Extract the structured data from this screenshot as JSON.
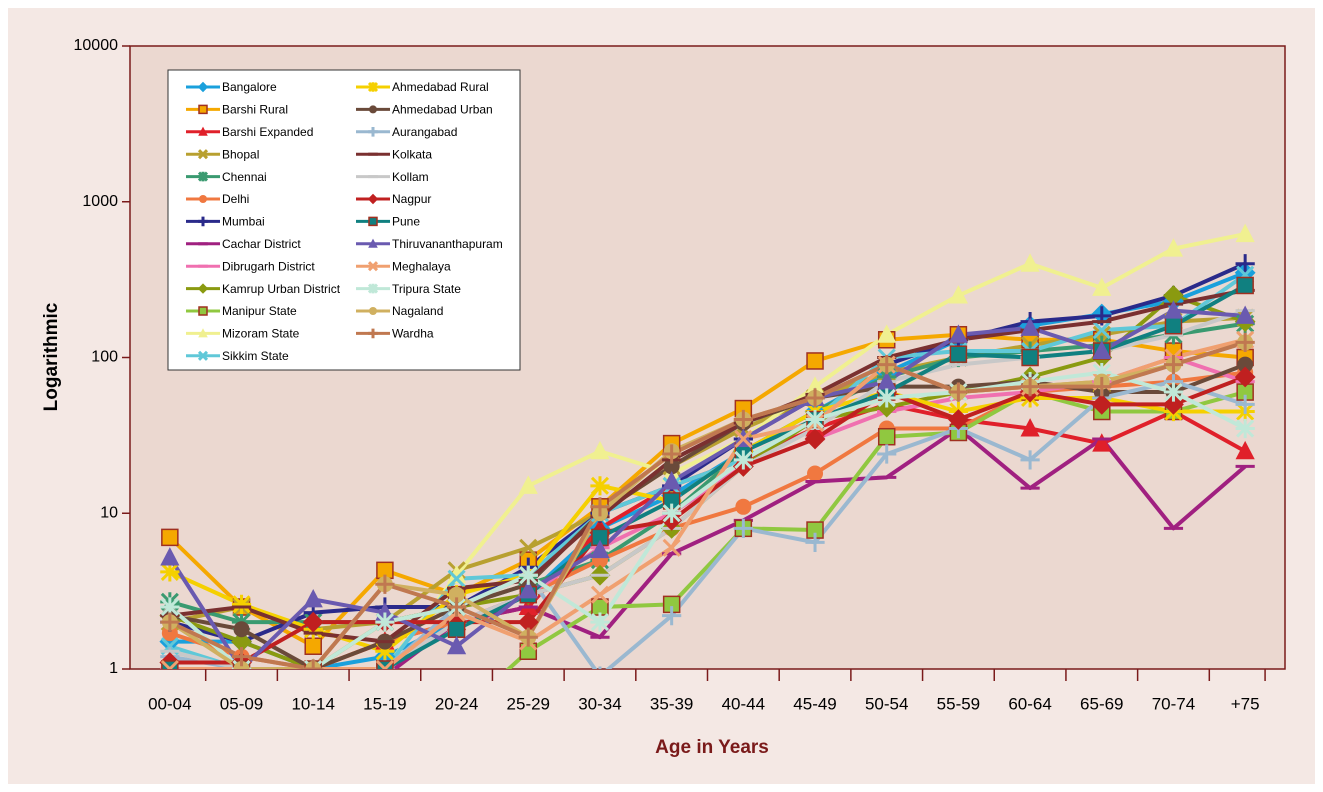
{
  "chart_data": {
    "type": "line",
    "xlabel": "Age in Years",
    "ylabel": "Logarithmic",
    "categories": [
      "00-04",
      "05-09",
      "10-14",
      "15-19",
      "20-24",
      "25-29",
      "30-34",
      "35-39",
      "40-44",
      "45-49",
      "50-54",
      "55-59",
      "60-64",
      "65-69",
      "70-74",
      "+75"
    ],
    "ylim": [
      1,
      10000
    ],
    "yticks": [
      1,
      10,
      100,
      1000,
      10000
    ],
    "log_scale": true,
    "legend": "upper left",
    "series": [
      {
        "name": "Bangalore",
        "color": "#1aa0dc",
        "marker": "diamond",
        "values": [
          1.5,
          1.5,
          1,
          1.2,
          2,
          3,
          8,
          13,
          25,
          45,
          80,
          130,
          160,
          190,
          230,
          350
        ]
      },
      {
        "name": "Barshi Rural",
        "color": "#f5a800",
        "marker": "square",
        "values": [
          7,
          2.5,
          1.4,
          4.3,
          3,
          5,
          11,
          28,
          47,
          95,
          130,
          140,
          130,
          130,
          110,
          100
        ]
      },
      {
        "name": "Barshi Expanded",
        "color": "#e0202a",
        "marker": "triangle",
        "values": [
          1,
          1,
          1,
          1.5,
          2,
          2.5,
          8,
          15,
          22,
          35,
          50,
          40,
          35,
          28,
          45,
          25
        ]
      },
      {
        "name": "Bhopal",
        "color": "#b8a030",
        "marker": "x",
        "values": [
          2,
          2.5,
          1.8,
          2,
          4.3,
          6,
          10,
          20,
          35,
          55,
          80,
          100,
          120,
          140,
          170,
          180
        ]
      },
      {
        "name": "Chennai",
        "color": "#3a9a70",
        "marker": "asterisk",
        "values": [
          2.7,
          2,
          2,
          2,
          2.5,
          3.5,
          5,
          10,
          25,
          45,
          75,
          100,
          110,
          120,
          140,
          165
        ]
      },
      {
        "name": "Delhi",
        "color": "#f07840",
        "marker": "circle",
        "values": [
          1.7,
          1.2,
          1,
          1.5,
          2,
          3,
          5,
          8,
          11,
          18,
          35,
          35,
          60,
          65,
          70,
          80
        ]
      },
      {
        "name": "Mumbai",
        "color": "#2a2a8a",
        "marker": "plus",
        "values": [
          2,
          1.5,
          2.3,
          2.5,
          2.5,
          4.5,
          10,
          15,
          30,
          55,
          90,
          130,
          170,
          185,
          250,
          400
        ]
      },
      {
        "name": "Cachar District",
        "color": "#a02080",
        "marker": "dash",
        "values": [
          0.8,
          0.8,
          0.8,
          0.9,
          2,
          2.5,
          1.6,
          5.5,
          9,
          16,
          17,
          35,
          14.5,
          30,
          8,
          20
        ]
      },
      {
        "name": "Dibrugarh District",
        "color": "#f070b0",
        "marker": "dash",
        "values": [
          1,
          1,
          1,
          1,
          2,
          3,
          6,
          10,
          20,
          30,
          45,
          55,
          60,
          70,
          100,
          70
        ]
      },
      {
        "name": "Kamrup Urban District",
        "color": "#8a9a10",
        "marker": "diamond",
        "values": [
          2.2,
          1.5,
          1,
          2,
          2.5,
          3,
          4,
          8,
          20,
          40,
          48,
          60,
          75,
          100,
          250,
          170
        ]
      },
      {
        "name": "Manipur State",
        "color": "#90c840",
        "marker": "square",
        "values": [
          0.5,
          0.5,
          0.5,
          1,
          0.5,
          1.3,
          2.5,
          2.6,
          8,
          7.8,
          31,
          33,
          60,
          45,
          45,
          60
        ]
      },
      {
        "name": "Mizoram State",
        "color": "#f0f090",
        "marker": "triangle",
        "values": [
          1,
          1,
          1,
          1,
          4,
          15,
          25,
          18,
          30,
          65,
          140,
          250,
          400,
          280,
          500,
          620
        ]
      },
      {
        "name": "Sikkim State",
        "color": "#60c8d8",
        "marker": "x",
        "values": [
          1.4,
          1,
          1,
          1,
          3.8,
          4,
          10,
          15,
          22,
          40,
          100,
          110,
          110,
          150,
          160,
          340
        ]
      },
      {
        "name": "Ahmedabad Rural",
        "color": "#f5d000",
        "marker": "asterisk",
        "values": [
          4.2,
          2.6,
          1.8,
          1.3,
          3,
          4,
          15,
          12,
          25,
          45,
          60,
          45,
          55,
          55,
          45,
          45
        ]
      },
      {
        "name": "Ahmedabad Urban",
        "color": "#6a4a3a",
        "marker": "circle",
        "values": [
          2.2,
          1.8,
          1,
          1.5,
          2.5,
          3.5,
          10,
          20,
          38,
          55,
          65,
          65,
          70,
          60,
          60,
          90
        ]
      },
      {
        "name": "Aurangabad",
        "color": "#9ab8d0",
        "marker": "plus",
        "values": [
          1.2,
          1,
          1,
          1,
          2.5,
          4,
          0.9,
          2.2,
          8,
          6.5,
          24,
          35,
          22,
          55,
          70,
          50
        ]
      },
      {
        "name": "Kolkata",
        "color": "#7a3030",
        "marker": "dash",
        "values": [
          2.2,
          2.5,
          1.7,
          1.5,
          3.3,
          3.7,
          9.5,
          22,
          38,
          58,
          100,
          130,
          150,
          170,
          220,
          270
        ]
      },
      {
        "name": "Kollam",
        "color": "#c8c8c8",
        "marker": "dash",
        "values": [
          1.3,
          1,
          1,
          1,
          2,
          3,
          4,
          8,
          20,
          35,
          70,
          90,
          100,
          110,
          140,
          200
        ]
      },
      {
        "name": "Nagpur",
        "color": "#c02020",
        "marker": "diamond",
        "values": [
          1.1,
          1.1,
          2,
          2,
          2,
          2,
          7.5,
          9,
          20,
          30,
          60,
          40,
          60,
          50,
          50,
          75
        ]
      },
      {
        "name": "Pune",
        "color": "#108080",
        "marker": "square",
        "values": [
          1,
          1,
          1,
          1,
          1.8,
          3,
          7,
          12,
          25,
          40,
          60,
          105,
          100,
          110,
          160,
          290
        ]
      },
      {
        "name": "Thiruvananthapuram",
        "color": "#6a5ab0",
        "marker": "triangle",
        "values": [
          5.2,
          1,
          2.8,
          2.3,
          1.4,
          3.2,
          5.8,
          16,
          30,
          55,
          70,
          140,
          155,
          110,
          200,
          185
        ]
      },
      {
        "name": "Meghalaya",
        "color": "#f0a070",
        "marker": "x",
        "values": [
          1,
          1,
          1,
          1,
          2.3,
          1.5,
          3,
          6,
          30,
          38,
          90,
          60,
          65,
          70,
          100,
          130
        ]
      },
      {
        "name": "Tripura State",
        "color": "#c0e8d8",
        "marker": "asterisk",
        "values": [
          2.5,
          1,
          1,
          2,
          2.5,
          4,
          2,
          10,
          22,
          40,
          55,
          60,
          70,
          80,
          60,
          35
        ]
      },
      {
        "name": "Nagaland",
        "color": "#d0b060",
        "marker": "circle",
        "values": [
          2,
          1,
          1,
          3.5,
          3,
          1.6,
          10,
          25,
          40,
          55,
          90,
          60,
          65,
          70,
          90,
          125
        ]
      },
      {
        "name": "Wardha",
        "color": "#c07850",
        "marker": "plus",
        "values": [
          2,
          1.2,
          1,
          3.5,
          2.5,
          1.6,
          11,
          24,
          40,
          55,
          90,
          60,
          65,
          65,
          90,
          125
        ]
      }
    ]
  }
}
